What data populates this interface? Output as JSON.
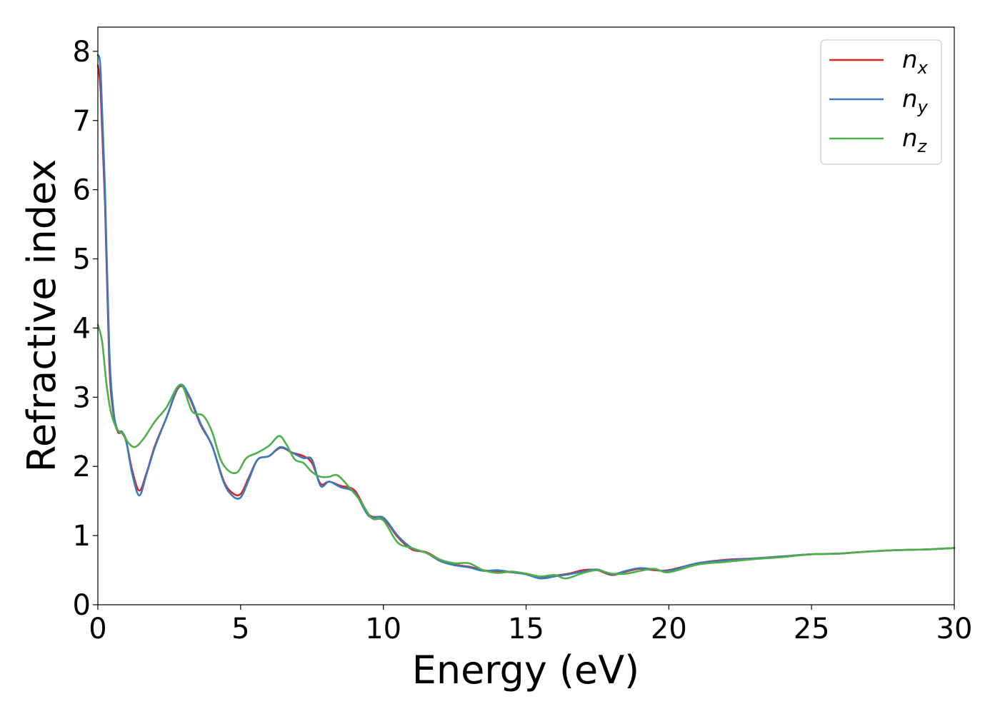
{
  "chart_data": {
    "type": "line",
    "title": "",
    "xlabel": "Energy (eV)",
    "ylabel": "Refractive index",
    "xlim": [
      0,
      30
    ],
    "ylim": [
      0,
      8.35
    ],
    "xticks": [
      0,
      5,
      10,
      15,
      20,
      25,
      30
    ],
    "yticks": [
      0,
      1,
      2,
      3,
      4,
      5,
      6,
      7,
      8
    ],
    "grid": false,
    "legend_position": "top-right",
    "series": [
      {
        "name": "n",
        "subscript": "x",
        "color": "#d62728",
        "x": [
          0.0,
          0.1,
          0.25,
          0.4,
          0.55,
          0.7,
          0.85,
          1.0,
          1.2,
          1.45,
          1.7,
          2.0,
          2.4,
          2.85,
          3.2,
          3.6,
          4.0,
          4.4,
          4.7,
          5.0,
          5.3,
          5.6,
          6.0,
          6.4,
          6.8,
          7.2,
          7.5,
          7.8,
          8.1,
          8.5,
          9.0,
          9.5,
          10.0,
          10.5,
          11.0,
          11.5,
          12.0,
          12.5,
          13.0,
          13.5,
          14.0,
          14.5,
          15.0,
          15.5,
          16.0,
          16.5,
          17.0,
          17.5,
          18.0,
          18.5,
          19.0,
          19.5,
          20.0,
          21.0,
          22.0,
          23.0,
          24.0,
          25.0,
          26.0,
          27.0,
          28.0,
          29.0,
          30.0
        ],
        "values": [
          7.8,
          7.4,
          5.8,
          3.5,
          2.75,
          2.5,
          2.48,
          2.35,
          1.95,
          1.65,
          1.9,
          2.3,
          2.7,
          3.15,
          3.0,
          2.6,
          2.3,
          1.8,
          1.62,
          1.6,
          1.85,
          2.1,
          2.15,
          2.27,
          2.2,
          2.15,
          2.05,
          1.75,
          1.78,
          1.72,
          1.65,
          1.3,
          1.25,
          0.98,
          0.8,
          0.76,
          0.65,
          0.58,
          0.55,
          0.5,
          0.48,
          0.47,
          0.45,
          0.4,
          0.42,
          0.45,
          0.5,
          0.5,
          0.43,
          0.48,
          0.52,
          0.5,
          0.5,
          0.6,
          0.65,
          0.67,
          0.7,
          0.73,
          0.74,
          0.77,
          0.79,
          0.8,
          0.82
        ]
      },
      {
        "name": "n",
        "subscript": "y",
        "color": "#3a7bbf",
        "x": [
          0.0,
          0.1,
          0.25,
          0.4,
          0.55,
          0.7,
          0.85,
          1.0,
          1.2,
          1.45,
          1.7,
          2.0,
          2.4,
          2.85,
          3.2,
          3.6,
          4.0,
          4.4,
          4.7,
          5.0,
          5.3,
          5.6,
          6.0,
          6.4,
          6.8,
          7.2,
          7.5,
          7.8,
          8.1,
          8.5,
          9.0,
          9.5,
          10.0,
          10.5,
          11.0,
          11.5,
          12.0,
          12.5,
          13.0,
          13.5,
          14.0,
          14.5,
          15.0,
          15.5,
          16.0,
          16.5,
          17.0,
          17.5,
          18.0,
          18.5,
          19.0,
          19.5,
          20.0,
          21.0,
          22.0,
          23.0,
          24.0,
          25.0,
          26.0,
          27.0,
          28.0,
          29.0,
          30.0
        ],
        "values": [
          7.95,
          7.7,
          6.0,
          3.7,
          2.8,
          2.52,
          2.5,
          2.35,
          1.9,
          1.58,
          1.88,
          2.28,
          2.7,
          3.17,
          3.02,
          2.62,
          2.3,
          1.78,
          1.58,
          1.55,
          1.82,
          2.1,
          2.15,
          2.28,
          2.2,
          2.12,
          2.1,
          1.72,
          1.78,
          1.7,
          1.62,
          1.28,
          1.26,
          1.0,
          0.82,
          0.75,
          0.63,
          0.57,
          0.54,
          0.49,
          0.5,
          0.47,
          0.44,
          0.38,
          0.41,
          0.44,
          0.48,
          0.51,
          0.44,
          0.49,
          0.53,
          0.51,
          0.49,
          0.6,
          0.64,
          0.67,
          0.7,
          0.73,
          0.74,
          0.77,
          0.79,
          0.8,
          0.82
        ]
      },
      {
        "name": "n",
        "subscript": "z",
        "color": "#4daf4a",
        "x": [
          0.0,
          0.15,
          0.3,
          0.45,
          0.6,
          0.75,
          0.9,
          1.05,
          1.3,
          1.6,
          2.0,
          2.4,
          2.9,
          3.3,
          3.7,
          4.0,
          4.3,
          4.6,
          4.9,
          5.2,
          5.6,
          6.0,
          6.35,
          6.6,
          6.9,
          7.2,
          7.5,
          7.8,
          8.1,
          8.4,
          8.8,
          9.2,
          9.6,
          10.0,
          10.5,
          11.0,
          11.5,
          12.0,
          12.5,
          13.0,
          13.5,
          14.0,
          14.5,
          15.0,
          15.5,
          16.0,
          16.4,
          17.0,
          17.5,
          18.0,
          18.5,
          19.0,
          19.5,
          20.0,
          21.0,
          22.0,
          23.0,
          24.0,
          25.0,
          26.0,
          27.0,
          28.0,
          29.0,
          30.0
        ],
        "values": [
          4.05,
          3.8,
          3.2,
          2.8,
          2.6,
          2.5,
          2.47,
          2.35,
          2.28,
          2.4,
          2.65,
          2.85,
          3.18,
          2.8,
          2.73,
          2.5,
          2.1,
          1.93,
          1.92,
          2.12,
          2.2,
          2.3,
          2.44,
          2.32,
          2.1,
          2.05,
          1.92,
          1.85,
          1.85,
          1.87,
          1.7,
          1.5,
          1.25,
          1.22,
          0.9,
          0.82,
          0.75,
          0.65,
          0.6,
          0.6,
          0.5,
          0.46,
          0.48,
          0.45,
          0.41,
          0.43,
          0.38,
          0.46,
          0.5,
          0.45,
          0.45,
          0.49,
          0.52,
          0.47,
          0.58,
          0.62,
          0.66,
          0.69,
          0.73,
          0.74,
          0.77,
          0.79,
          0.8,
          0.82
        ]
      }
    ]
  }
}
